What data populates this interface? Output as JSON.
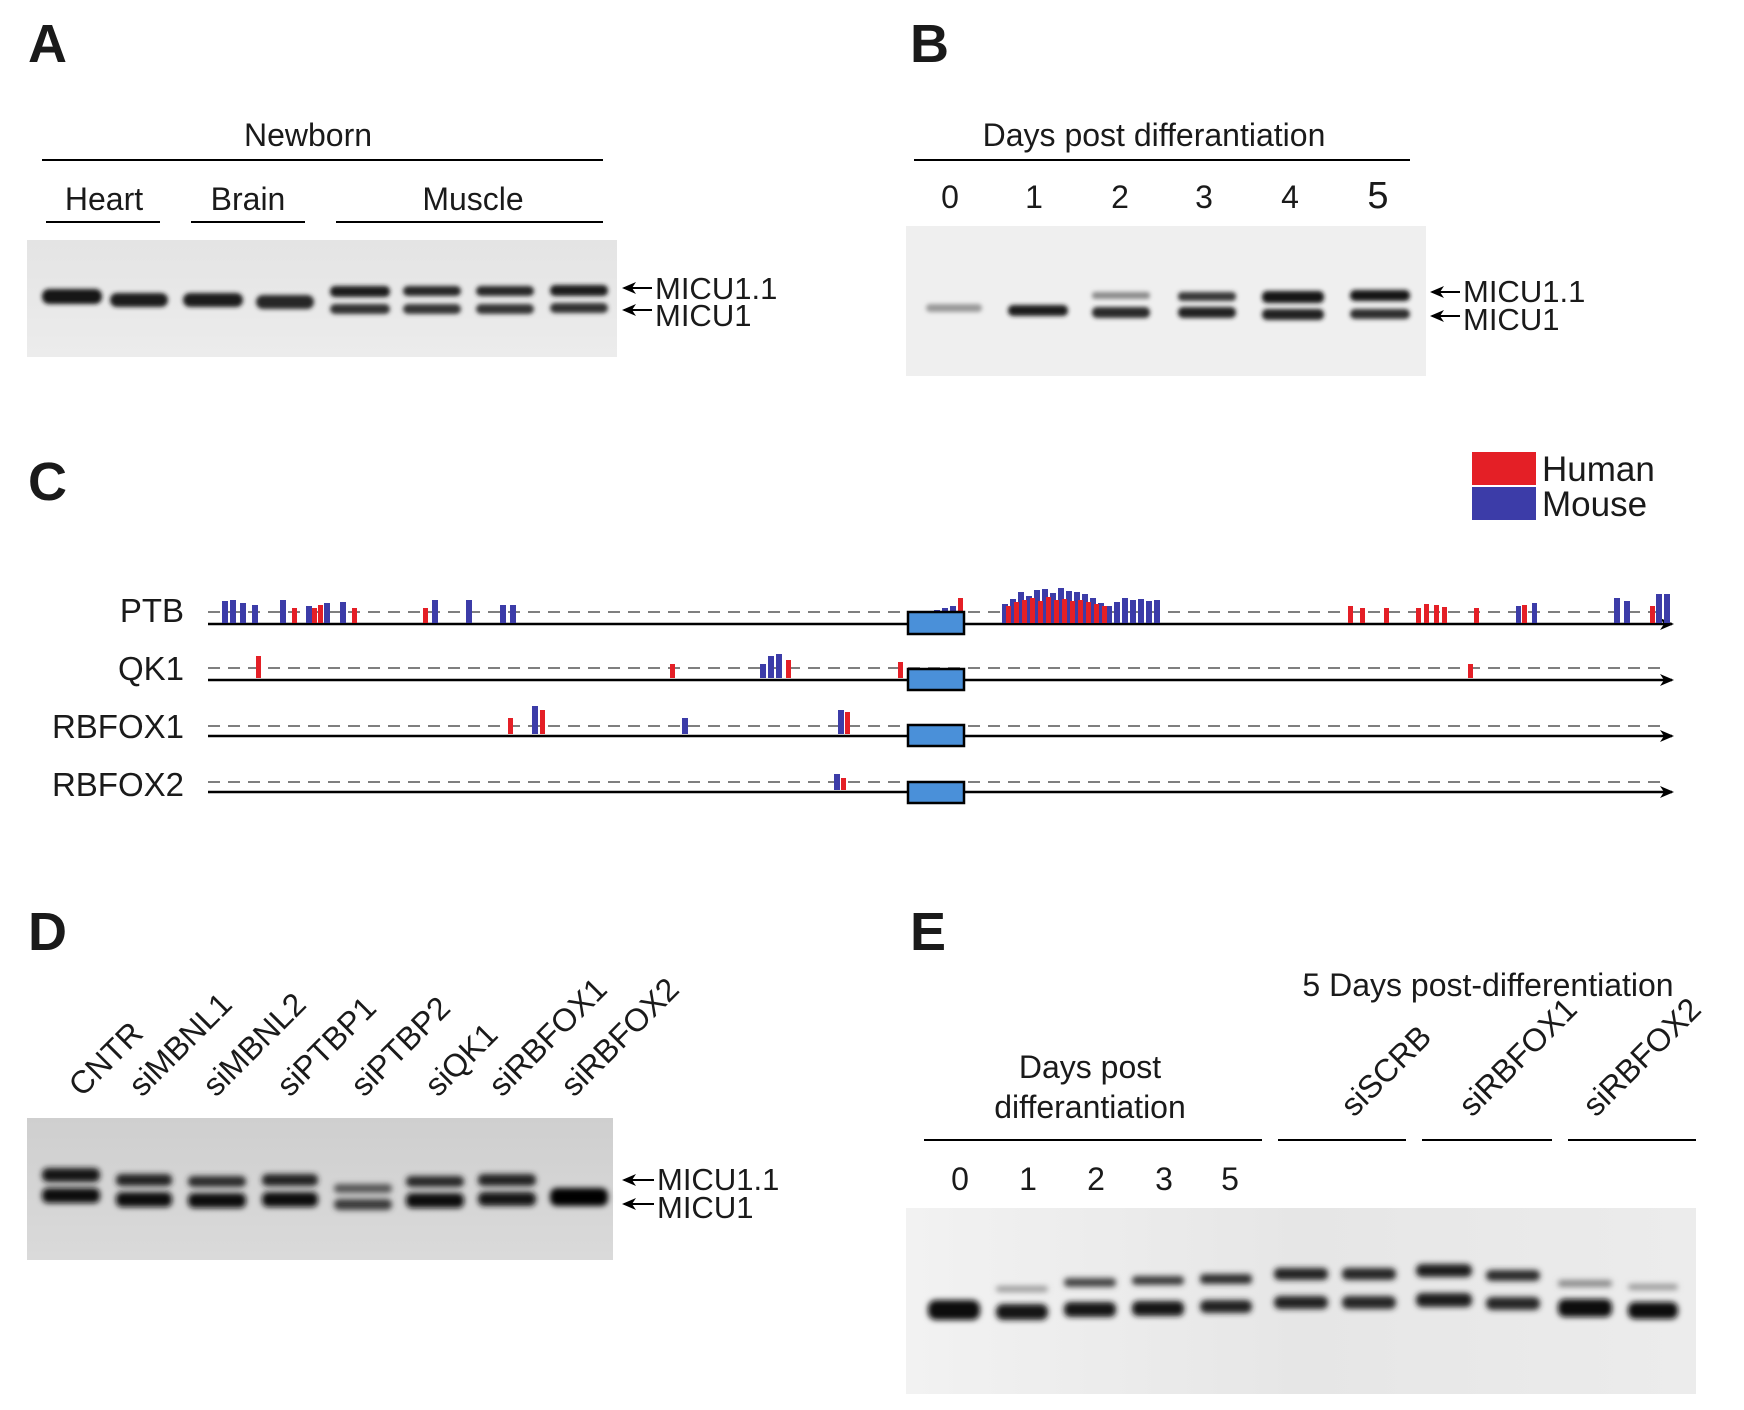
{
  "figure": {
    "panels": {
      "A": {
        "letter": "A",
        "header": "Newborn",
        "groups": [
          "Heart",
          "Brain",
          "Muscle"
        ],
        "band_labels": [
          "MICU1.1",
          "MICU1"
        ]
      },
      "B": {
        "letter": "B",
        "header": "Days post differantiation",
        "lanes": [
          "0",
          "1",
          "2",
          "3",
          "4",
          "5"
        ],
        "band_labels": [
          "MICU1.1",
          "MICU1"
        ]
      },
      "C": {
        "letter": "C",
        "legend": [
          {
            "name": "Human",
            "color": "#e41f26"
          },
          {
            "name": "Mouse",
            "color": "#3c3ca8"
          }
        ],
        "tracks": [
          "PTB",
          "QK1",
          "RBFOX1",
          "RBFOX2"
        ],
        "exon_color": "#4a90d9"
      },
      "D": {
        "letter": "D",
        "lanes": [
          "CNTR",
          "siMBNL1",
          "siMBNL2",
          "siPTBP1",
          "siPTBP2",
          "siQK1",
          "siRBFOX1",
          "siRBFOX2"
        ],
        "band_labels": [
          "MICU1.1",
          "MICU1"
        ]
      },
      "E": {
        "letter": "E",
        "top_header": "5 Days post-differentiation",
        "left_header_line1": "Days post",
        "left_header_line2": "differantiation",
        "day_lanes": [
          "0",
          "1",
          "2",
          "3",
          "5"
        ],
        "treatments": [
          "siSCRB",
          "siRBFOX1",
          "siRBFOX2"
        ]
      }
    }
  }
}
